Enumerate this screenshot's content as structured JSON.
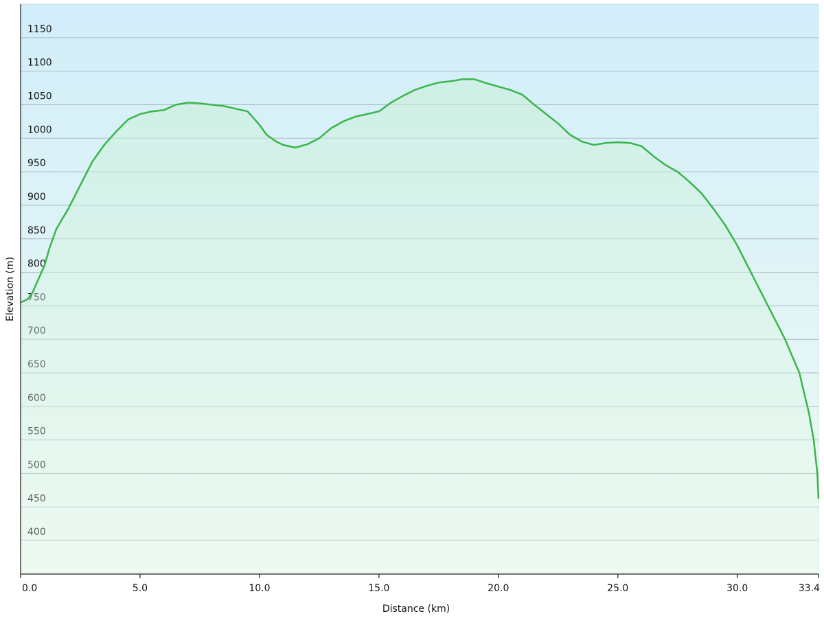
{
  "chart_data": {
    "type": "line",
    "x_label": "Distance  (km)",
    "y_label": "Elevation (m)",
    "x": [
      0,
      0.3,
      0.5,
      1.0,
      1.2,
      1.5,
      2.0,
      2.5,
      3.0,
      3.5,
      4.0,
      4.5,
      5.0,
      5.5,
      6.0,
      6.5,
      7.0,
      7.5,
      8.0,
      8.5,
      9.0,
      9.5,
      10.0,
      10.3,
      10.7,
      11.0,
      11.5,
      12.0,
      12.5,
      13.0,
      13.5,
      14.0,
      14.5,
      15.0,
      15.5,
      16.0,
      16.5,
      17.0,
      17.5,
      18.0,
      18.5,
      19.0,
      19.5,
      20.0,
      20.5,
      21.0,
      21.5,
      22.0,
      22.5,
      23.0,
      23.5,
      24.0,
      24.5,
      25.0,
      25.5,
      26.0,
      26.5,
      27.0,
      27.5,
      28.0,
      28.5,
      29.0,
      29.5,
      30.0,
      30.5,
      31.0,
      31.5,
      32.0,
      32.3,
      32.6,
      32.8,
      33.0,
      33.2,
      33.35,
      33.4
    ],
    "values": [
      755,
      760,
      770,
      810,
      835,
      865,
      895,
      930,
      965,
      990,
      1010,
      1028,
      1036,
      1040,
      1042,
      1050,
      1053,
      1052,
      1050,
      1048,
      1044,
      1040,
      1020,
      1005,
      995,
      990,
      986,
      991,
      1000,
      1015,
      1025,
      1032,
      1036,
      1040,
      1053,
      1063,
      1072,
      1078,
      1083,
      1085,
      1088,
      1088,
      1082,
      1077,
      1072,
      1065,
      1050,
      1036,
      1022,
      1005,
      995,
      990,
      993,
      994,
      993,
      988,
      973,
      960,
      950,
      935,
      918,
      895,
      870,
      840,
      805,
      770,
      735,
      700,
      675,
      650,
      620,
      590,
      550,
      500,
      462
    ],
    "color": "#3ab54a",
    "xlim": [
      0,
      33.4
    ],
    "ylim": [
      350,
      1200
    ],
    "xticks": [
      {
        "value": 0,
        "label": "0.0"
      },
      {
        "value": 5,
        "label": "5.0"
      },
      {
        "value": 10,
        "label": "10.0"
      },
      {
        "value": 15,
        "label": "15.0"
      },
      {
        "value": 20,
        "label": "20.0"
      },
      {
        "value": 25,
        "label": "25.0"
      },
      {
        "value": 30,
        "label": "30.0"
      },
      33.4
    ],
    "yticks": [
      400,
      450,
      500,
      550,
      600,
      650,
      700,
      750,
      800,
      850,
      900,
      950,
      1000,
      1050,
      1100,
      1150
    ],
    "grid": true
  }
}
